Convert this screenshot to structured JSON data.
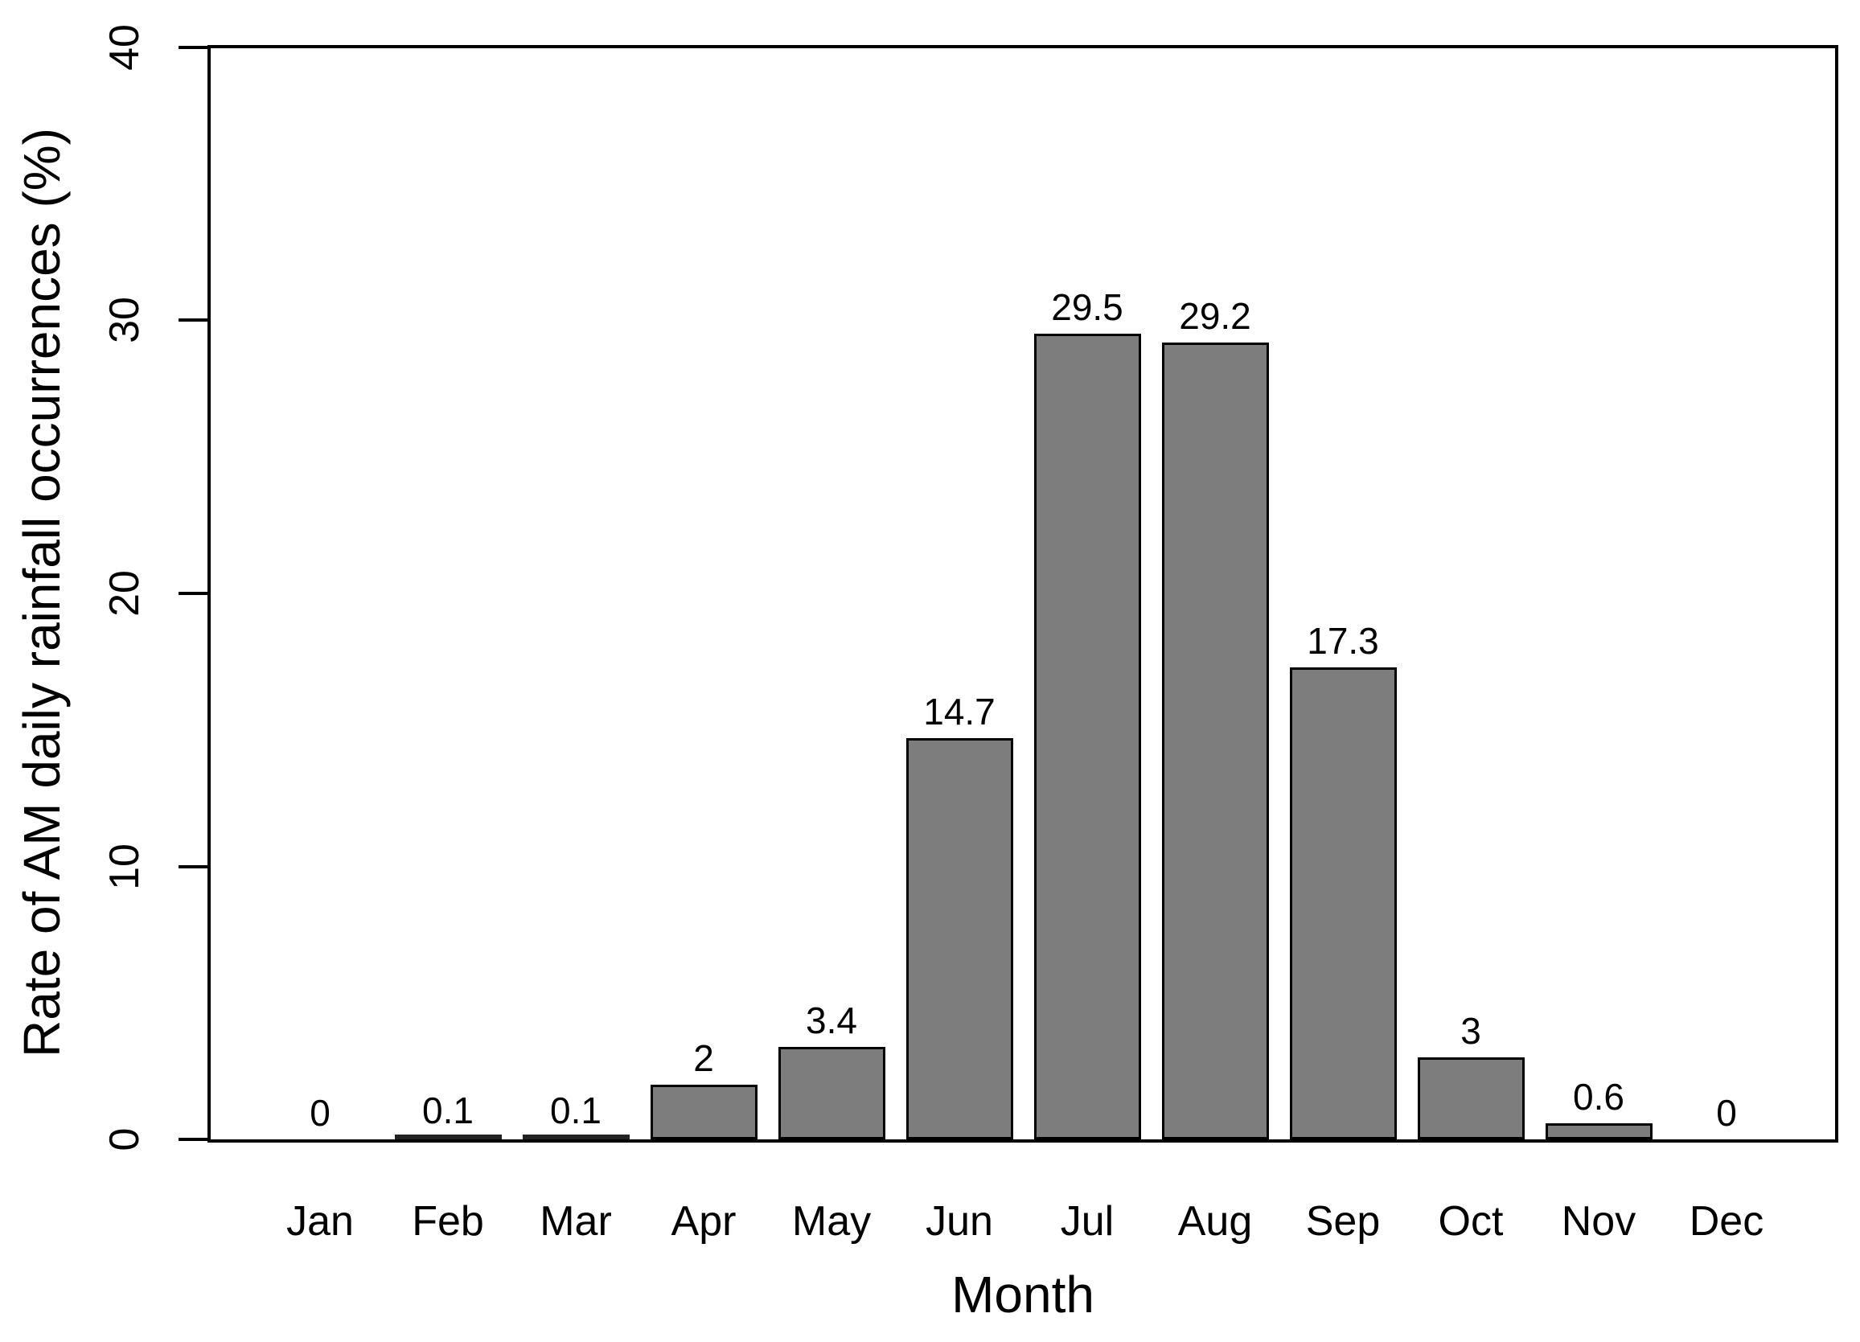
{
  "chart_data": {
    "type": "bar",
    "title": "",
    "xlabel": "Month",
    "ylabel": "Rate of AM daily rainfall occurrences (%)",
    "categories": [
      "Jan",
      "Feb",
      "Mar",
      "Apr",
      "May",
      "Jun",
      "Jul",
      "Aug",
      "Sep",
      "Oct",
      "Nov",
      "Dec"
    ],
    "values": [
      0,
      0.1,
      0.1,
      2,
      3.4,
      14.7,
      29.5,
      29.2,
      17.3,
      3,
      0.6,
      0
    ],
    "value_labels": [
      "0",
      "0.1",
      "0.1",
      "2",
      "3.4",
      "14.7",
      "29.5",
      "29.2",
      "17.3",
      "3",
      "0.6",
      "0"
    ],
    "y_ticks": [
      "0",
      "10",
      "20",
      "30",
      "40"
    ],
    "ylim": [
      0,
      40
    ],
    "grid": false,
    "legend": "none",
    "colors": {
      "bar_fill": "#7d7d7d",
      "bar_border": "#000000",
      "axis": "#000000",
      "text": "#000000",
      "background": "#ffffff"
    }
  }
}
